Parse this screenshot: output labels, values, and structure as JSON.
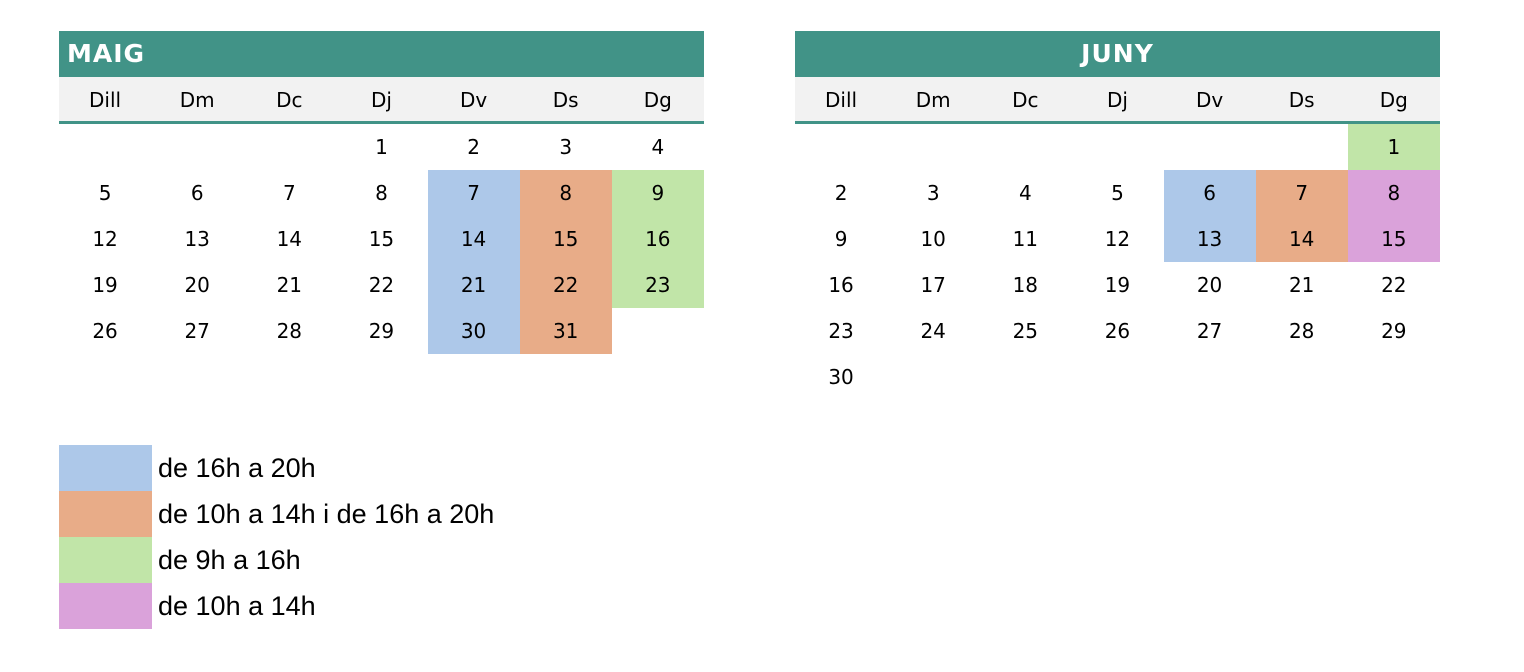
{
  "colors": {
    "header": "#419387",
    "blue": "#adc8e9",
    "orange": "#e8ac88",
    "green": "#c1e5a8",
    "pink": "#daa2da"
  },
  "weekdays": [
    "Dill",
    "Dm",
    "Dc",
    "Dj",
    "Dv",
    "Ds",
    "Dg"
  ],
  "months": [
    {
      "name": "MAIG",
      "start_col": 3,
      "days": [
        {
          "d": "1"
        },
        {
          "d": "2"
        },
        {
          "d": "3"
        },
        {
          "d": "4"
        },
        {
          "d": "5"
        },
        {
          "d": "6"
        },
        {
          "d": "7"
        },
        {
          "d": "8"
        },
        {
          "d": "7",
          "color": "blue"
        },
        {
          "d": "8",
          "color": "orange"
        },
        {
          "d": "9",
          "color": "green"
        },
        {
          "d": "12"
        },
        {
          "d": "13"
        },
        {
          "d": "14"
        },
        {
          "d": "15"
        },
        {
          "d": "14",
          "color": "blue"
        },
        {
          "d": "15",
          "color": "orange"
        },
        {
          "d": "16",
          "color": "green"
        },
        {
          "d": "19"
        },
        {
          "d": "20"
        },
        {
          "d": "21"
        },
        {
          "d": "22"
        },
        {
          "d": "21",
          "color": "blue"
        },
        {
          "d": "22",
          "color": "orange"
        },
        {
          "d": "23",
          "color": "green"
        },
        {
          "d": "26"
        },
        {
          "d": "27"
        },
        {
          "d": "28"
        },
        {
          "d": "29"
        },
        {
          "d": "30",
          "color": "blue"
        },
        {
          "d": "31",
          "color": "orange"
        }
      ]
    },
    {
      "name": "JUNY",
      "start_col": 6,
      "days": [
        {
          "d": "1",
          "color": "green"
        },
        {
          "d": "2"
        },
        {
          "d": "3"
        },
        {
          "d": "4"
        },
        {
          "d": "5"
        },
        {
          "d": "6",
          "color": "blue"
        },
        {
          "d": "7",
          "color": "orange"
        },
        {
          "d": "8",
          "color": "pink"
        },
        {
          "d": "9"
        },
        {
          "d": "10"
        },
        {
          "d": "11"
        },
        {
          "d": "12"
        },
        {
          "d": "13",
          "color": "blue"
        },
        {
          "d": "14",
          "color": "orange"
        },
        {
          "d": "15",
          "color": "pink"
        },
        {
          "d": "16"
        },
        {
          "d": "17"
        },
        {
          "d": "18"
        },
        {
          "d": "19"
        },
        {
          "d": "20"
        },
        {
          "d": "21"
        },
        {
          "d": "22"
        },
        {
          "d": "23"
        },
        {
          "d": "24"
        },
        {
          "d": "25"
        },
        {
          "d": "26"
        },
        {
          "d": "27"
        },
        {
          "d": "28"
        },
        {
          "d": "29"
        },
        {
          "d": "30"
        }
      ]
    }
  ],
  "legend": [
    {
      "color": "blue",
      "label": "de 16h a 20h"
    },
    {
      "color": "orange",
      "label": "de 10h a 14h i de 16h a 20h"
    },
    {
      "color": "green",
      "label": "de 9h a 16h"
    },
    {
      "color": "pink",
      "label": "de 10h a 14h"
    }
  ]
}
